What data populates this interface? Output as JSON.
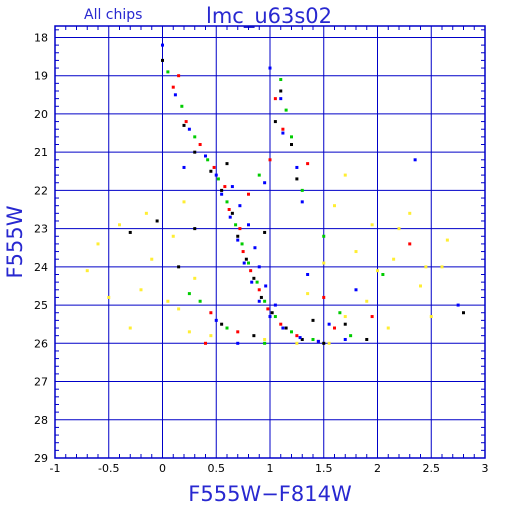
{
  "chart_data": {
    "type": "scatter",
    "title": "lmc_u63s02",
    "subtitle": "All chips",
    "xlabel": "F555W−F814W",
    "ylabel": "F555W",
    "xlim": [
      -1,
      3
    ],
    "ylim": [
      29,
      17.7
    ],
    "y_inverted": true,
    "grid": true,
    "x_ticks": [
      -1,
      -0.5,
      0,
      0.5,
      1,
      1.5,
      2,
      2.5,
      3
    ],
    "x_tick_labels": [
      "-1",
      "-0.5",
      "0",
      "0.5",
      "1",
      "1.5",
      "2",
      "2.5",
      "3"
    ],
    "y_ticks": [
      18,
      19,
      20,
      21,
      22,
      23,
      24,
      25,
      26,
      27,
      28,
      29
    ],
    "y_tick_labels": [
      "18",
      "19",
      "20",
      "21",
      "22",
      "23",
      "24",
      "25",
      "26",
      "27",
      "28",
      "29"
    ],
    "colors": {
      "frame": "#0000c8",
      "title": "#2828d0",
      "black": "#000000",
      "red": "#ff0000",
      "green": "#00cc00",
      "blue": "#0000ff",
      "yellow": "#ffee33"
    },
    "series": [
      {
        "color": "black",
        "points": [
          [
            0.0,
            18.6
          ],
          [
            0.2,
            20.3
          ],
          [
            0.3,
            21.0
          ],
          [
            0.45,
            21.5
          ],
          [
            0.55,
            22.0
          ],
          [
            0.65,
            22.6
          ],
          [
            0.7,
            23.2
          ],
          [
            0.78,
            23.8
          ],
          [
            0.85,
            24.3
          ],
          [
            0.92,
            24.8
          ],
          [
            1.02,
            25.2
          ],
          [
            1.15,
            25.6
          ],
          [
            1.3,
            25.9
          ],
          [
            1.5,
            26.0
          ],
          [
            1.1,
            19.4
          ],
          [
            1.05,
            20.2
          ],
          [
            1.2,
            20.8
          ],
          [
            -0.05,
            22.8
          ],
          [
            0.3,
            23.0
          ],
          [
            1.4,
            25.4
          ],
          [
            0.85,
            25.8
          ],
          [
            0.55,
            25.5
          ],
          [
            1.25,
            21.7
          ],
          [
            1.7,
            25.5
          ],
          [
            0.95,
            23.1
          ],
          [
            0.6,
            21.3
          ],
          [
            -0.3,
            23.1
          ],
          [
            1.9,
            25.9
          ],
          [
            0.15,
            24.0
          ],
          [
            2.8,
            25.2
          ]
        ]
      },
      {
        "color": "red",
        "points": [
          [
            0.1,
            19.3
          ],
          [
            0.22,
            20.2
          ],
          [
            0.35,
            20.8
          ],
          [
            0.48,
            21.4
          ],
          [
            0.58,
            21.9
          ],
          [
            0.62,
            22.5
          ],
          [
            0.72,
            23.0
          ],
          [
            0.75,
            23.6
          ],
          [
            0.82,
            24.1
          ],
          [
            0.9,
            24.6
          ],
          [
            0.98,
            25.1
          ],
          [
            1.1,
            25.5
          ],
          [
            1.25,
            25.8
          ],
          [
            1.45,
            25.95
          ],
          [
            1.05,
            19.6
          ],
          [
            1.12,
            20.4
          ],
          [
            1.0,
            21.2
          ],
          [
            1.6,
            25.6
          ],
          [
            0.7,
            25.7
          ],
          [
            0.45,
            25.2
          ],
          [
            1.35,
            21.3
          ],
          [
            1.5,
            24.8
          ],
          [
            0.15,
            19.0
          ],
          [
            0.4,
            26.0
          ],
          [
            2.3,
            23.4
          ],
          [
            1.95,
            25.3
          ],
          [
            0.8,
            22.1
          ]
        ]
      },
      {
        "color": "green",
        "points": [
          [
            0.05,
            18.9
          ],
          [
            0.18,
            19.8
          ],
          [
            0.3,
            20.6
          ],
          [
            0.42,
            21.2
          ],
          [
            0.52,
            21.7
          ],
          [
            0.6,
            22.3
          ],
          [
            0.68,
            22.9
          ],
          [
            0.74,
            23.4
          ],
          [
            0.8,
            23.9
          ],
          [
            0.88,
            24.4
          ],
          [
            0.95,
            24.9
          ],
          [
            1.05,
            25.3
          ],
          [
            1.2,
            25.7
          ],
          [
            1.4,
            25.9
          ],
          [
            1.1,
            19.1
          ],
          [
            1.15,
            19.9
          ],
          [
            1.2,
            20.6
          ],
          [
            1.3,
            22.0
          ],
          [
            1.75,
            25.8
          ],
          [
            0.6,
            25.6
          ],
          [
            0.35,
            24.9
          ],
          [
            0.9,
            21.6
          ],
          [
            1.5,
            23.2
          ],
          [
            0.25,
            24.7
          ],
          [
            1.65,
            25.2
          ],
          [
            2.05,
            24.2
          ],
          [
            0.95,
            26.0
          ]
        ]
      },
      {
        "color": "blue",
        "points": [
          [
            0.0,
            18.2
          ],
          [
            0.12,
            19.5
          ],
          [
            0.25,
            20.4
          ],
          [
            0.4,
            21.1
          ],
          [
            0.5,
            21.6
          ],
          [
            0.55,
            22.1
          ],
          [
            0.63,
            22.7
          ],
          [
            0.7,
            23.3
          ],
          [
            0.76,
            23.9
          ],
          [
            0.83,
            24.4
          ],
          [
            0.9,
            24.9
          ],
          [
            1.0,
            25.3
          ],
          [
            1.12,
            25.6
          ],
          [
            1.28,
            25.85
          ],
          [
            1.45,
            25.95
          ],
          [
            1.0,
            18.8
          ],
          [
            1.1,
            19.6
          ],
          [
            1.12,
            20.5
          ],
          [
            1.25,
            21.4
          ],
          [
            1.3,
            22.3
          ],
          [
            0.65,
            21.9
          ],
          [
            0.72,
            22.4
          ],
          [
            0.8,
            22.9
          ],
          [
            0.86,
            23.5
          ],
          [
            0.9,
            24.0
          ],
          [
            0.96,
            24.5
          ],
          [
            1.05,
            25.0
          ],
          [
            1.55,
            25.5
          ],
          [
            1.7,
            25.9
          ],
          [
            0.5,
            25.4
          ],
          [
            0.7,
            26.0
          ],
          [
            0.95,
            21.8
          ],
          [
            1.35,
            24.2
          ],
          [
            2.35,
            21.2
          ],
          [
            2.75,
            25.0
          ],
          [
            0.2,
            21.4
          ],
          [
            1.8,
            24.6
          ]
        ]
      },
      {
        "color": "yellow",
        "points": [
          [
            -0.4,
            22.9
          ],
          [
            -0.7,
            24.1
          ],
          [
            -0.2,
            24.6
          ],
          [
            0.1,
            23.2
          ],
          [
            0.3,
            24.3
          ],
          [
            0.45,
            25.8
          ],
          [
            0.15,
            25.1
          ],
          [
            -0.1,
            23.8
          ],
          [
            1.6,
            22.4
          ],
          [
            1.8,
            23.6
          ],
          [
            2.0,
            24.1
          ],
          [
            2.2,
            23.0
          ],
          [
            1.9,
            24.9
          ],
          [
            2.4,
            24.5
          ],
          [
            1.7,
            25.3
          ],
          [
            2.6,
            24.0
          ],
          [
            2.1,
            25.6
          ],
          [
            1.5,
            23.9
          ],
          [
            2.3,
            22.6
          ],
          [
            -0.5,
            24.8
          ],
          [
            1.25,
            26.0
          ],
          [
            0.95,
            25.9
          ],
          [
            1.7,
            21.6
          ],
          [
            0.2,
            22.3
          ],
          [
            2.5,
            25.3
          ],
          [
            -0.3,
            25.6
          ],
          [
            2.65,
            23.3
          ],
          [
            1.35,
            24.7
          ],
          [
            -0.6,
            23.4
          ],
          [
            0.05,
            24.9
          ],
          [
            1.95,
            22.9
          ],
          [
            2.45,
            24.0
          ],
          [
            1.55,
            26.0
          ],
          [
            0.25,
            25.7
          ],
          [
            -0.15,
            22.6
          ],
          [
            2.15,
            23.8
          ]
        ]
      }
    ]
  }
}
